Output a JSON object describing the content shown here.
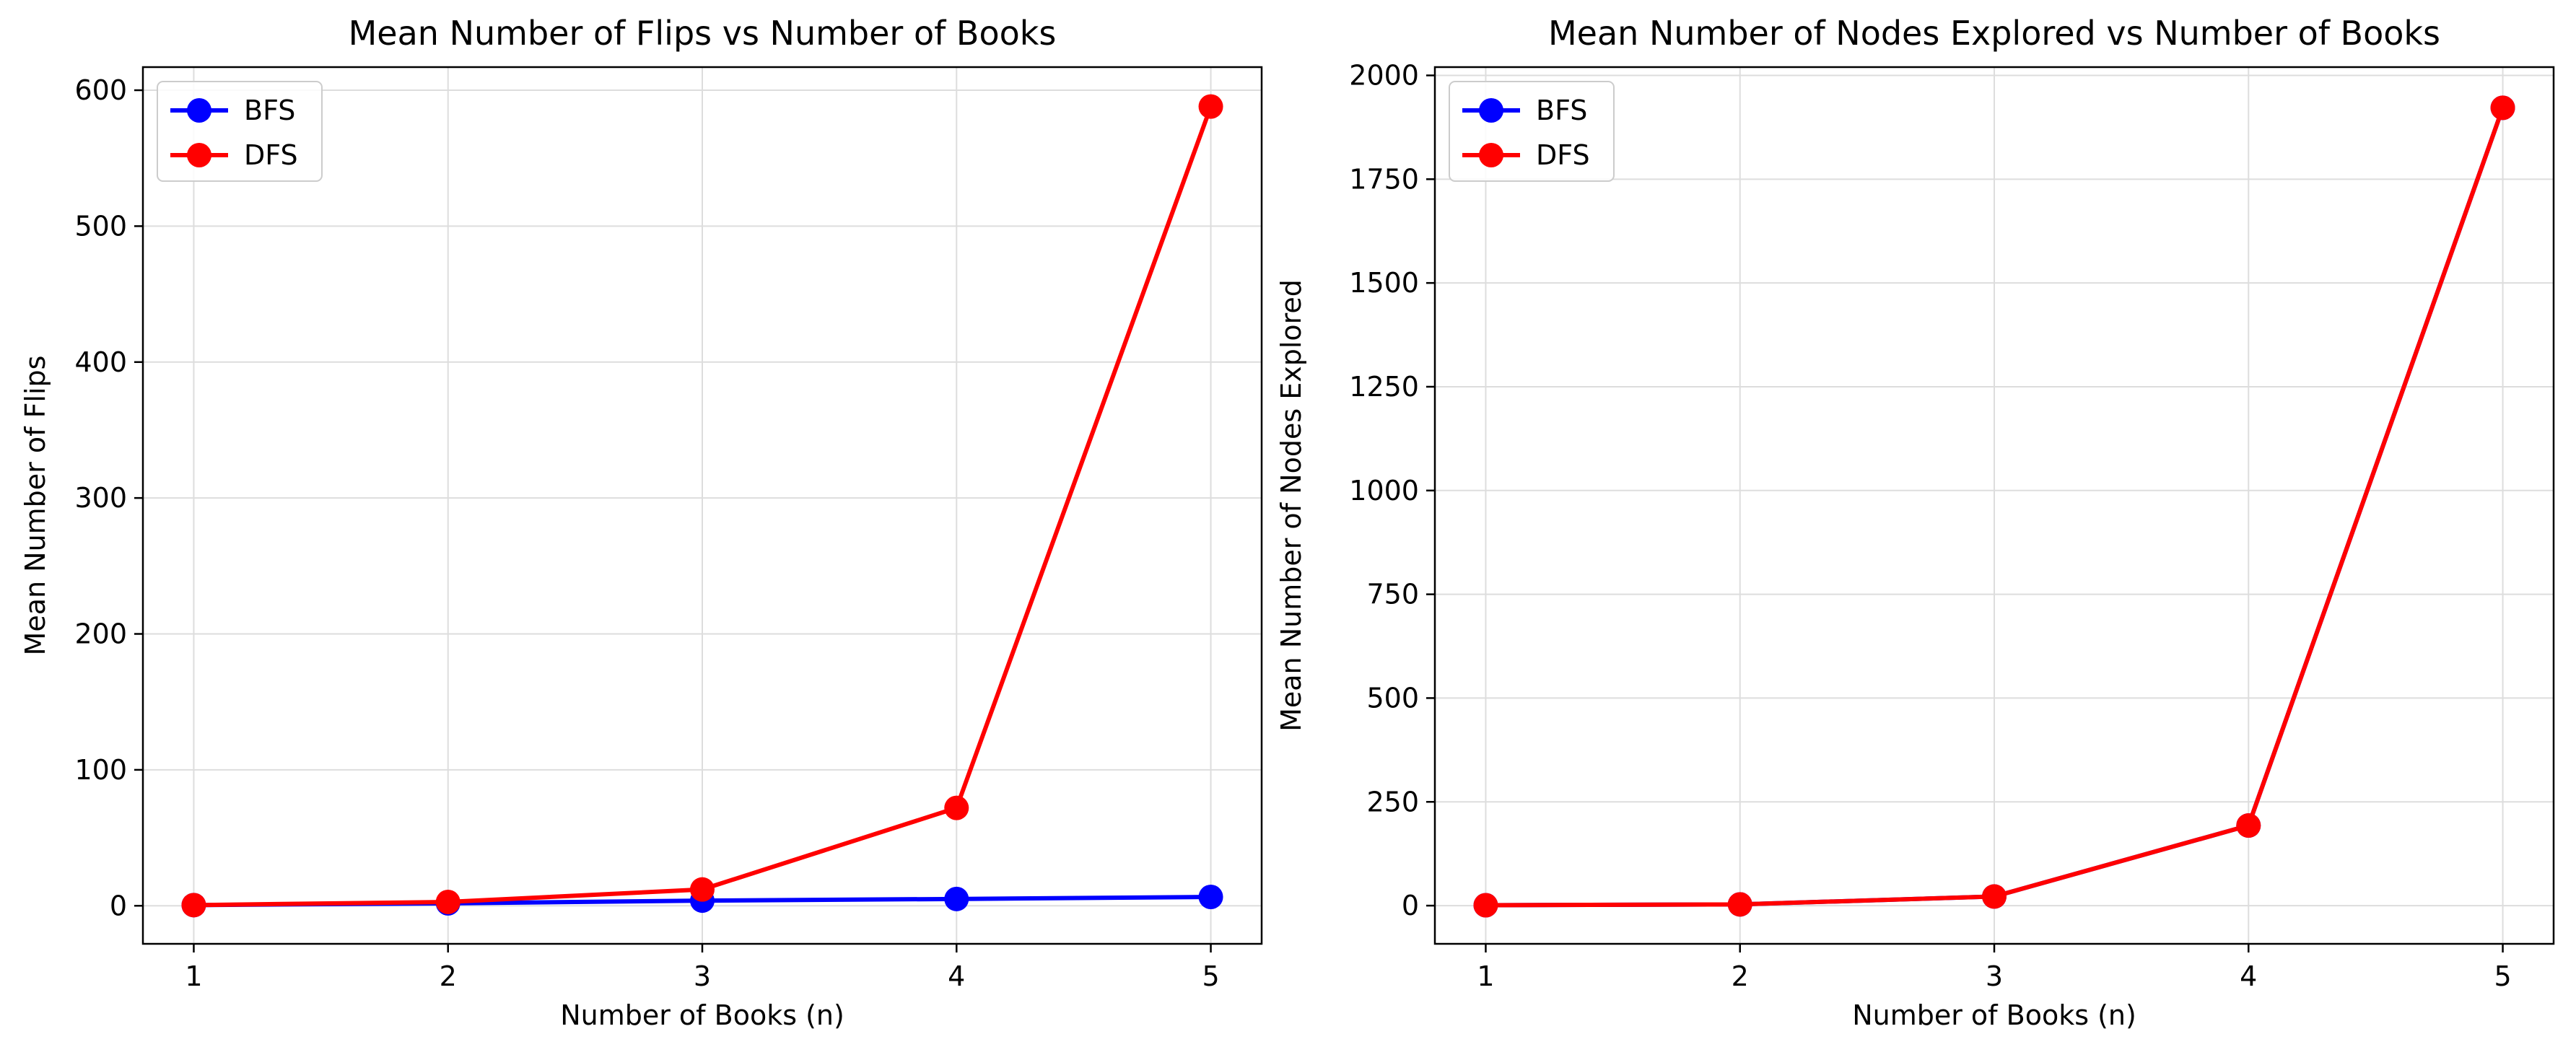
{
  "colors": {
    "BFS": "#0000ff",
    "DFS": "#ff0000",
    "grid": "#dddddd",
    "axis": "#000000"
  },
  "chart_data": [
    {
      "type": "line",
      "title": "Mean Number of Flips vs Number of Books",
      "xlabel": "Number of Books (n)",
      "ylabel": "Mean Number of Flips",
      "x": [
        1,
        2,
        3,
        4,
        5
      ],
      "xticks": [
        "1",
        "2",
        "3",
        "4",
        "5"
      ],
      "yticks": [
        "0",
        "100",
        "200",
        "300",
        "400",
        "500",
        "600"
      ],
      "xlim": [
        0.8,
        5.2
      ],
      "ylim": [
        -28,
        617
      ],
      "grid": true,
      "legend": "top-left",
      "series": [
        {
          "name": "BFS",
          "values": [
            0.5,
            1.8,
            3.8,
            5,
            6.5
          ]
        },
        {
          "name": "DFS",
          "values": [
            0.5,
            2.8,
            12,
            72,
            588
          ]
        }
      ]
    },
    {
      "type": "line",
      "title": "Mean Number of Nodes Explored vs Number of Books",
      "xlabel": "Number of Books (n)",
      "ylabel": "Mean Number of Nodes Explored",
      "x": [
        1,
        2,
        3,
        4,
        5
      ],
      "xticks": [
        "1",
        "2",
        "3",
        "4",
        "5"
      ],
      "yticks": [
        "0",
        "250",
        "500",
        "750",
        "1000",
        "1250",
        "1500",
        "1750",
        "2000"
      ],
      "xlim": [
        0.8,
        5.2
      ],
      "ylim": [
        -92,
        2020
      ],
      "grid": true,
      "legend": "top-left",
      "series": [
        {
          "name": "BFS",
          "values": [
            1,
            3,
            22,
            193,
            1922
          ]
        },
        {
          "name": "DFS",
          "values": [
            1,
            3,
            22,
            193,
            1922
          ]
        }
      ]
    }
  ]
}
